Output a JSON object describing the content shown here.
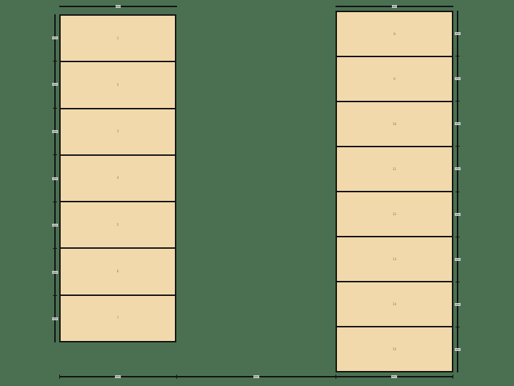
{
  "colors": {
    "background": "#4a7051",
    "panel_fill": "#f2d9ab",
    "outline": "#131313",
    "part_number_text": "#8a6d4a",
    "dimension_label_bg": "#d8d8d8",
    "dimension_label_text": "#222222"
  },
  "columns": [
    {
      "name": "left-sheet",
      "top_width_label": "650",
      "parts": [
        {
          "id": "1",
          "height_label": "260"
        },
        {
          "id": "2",
          "height_label": "260"
        },
        {
          "id": "3",
          "height_label": "260"
        },
        {
          "id": "4",
          "height_label": "260"
        },
        {
          "id": "5",
          "height_label": "260"
        },
        {
          "id": "6",
          "height_label": "260"
        },
        {
          "id": "7",
          "height_label": "260"
        }
      ]
    },
    {
      "name": "right-sheet",
      "top_width_label": "650",
      "parts": [
        {
          "id": "8",
          "height_label": "250"
        },
        {
          "id": "9",
          "height_label": "250"
        },
        {
          "id": "10",
          "height_label": "250"
        },
        {
          "id": "11",
          "height_label": "250"
        },
        {
          "id": "12",
          "height_label": "250"
        },
        {
          "id": "13",
          "height_label": "250"
        },
        {
          "id": "14",
          "height_label": "250"
        },
        {
          "id": "15",
          "height_label": "250"
        }
      ]
    }
  ],
  "bottom_dimension": {
    "segment_labels": [
      "650",
      "890",
      "650"
    ]
  }
}
